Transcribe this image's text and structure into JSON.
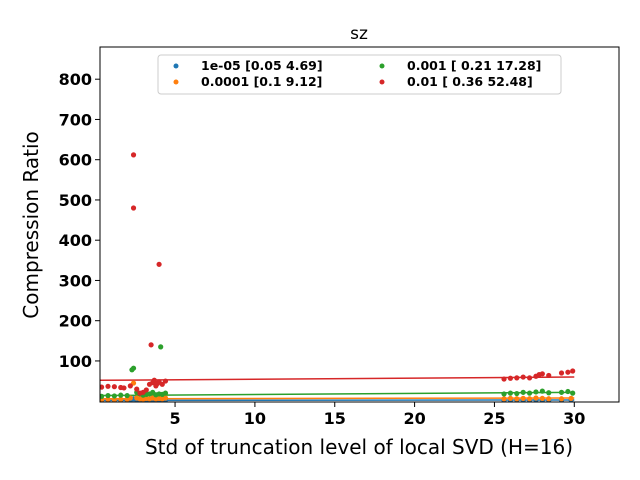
{
  "chart_data": {
    "type": "scatter",
    "title": "sz",
    "xlabel": "Std of truncation level of local SVD (H=16)",
    "ylabel": "Compression Ratio",
    "xlim": [
      0.3,
      32.8
    ],
    "ylim": [
      -2,
      880
    ],
    "xticks": [
      5,
      10,
      15,
      20,
      25,
      30
    ],
    "yticks": [
      100,
      200,
      300,
      400,
      500,
      600,
      700,
      800
    ],
    "grid": false,
    "legend_position": "top-center",
    "series": [
      {
        "name": "1e-05 [0.05 4.69]",
        "color": "#1f77b4",
        "points": [
          [
            0.4,
            1
          ],
          [
            0.8,
            2
          ],
          [
            1.2,
            1
          ],
          [
            1.6,
            2
          ],
          [
            2.0,
            2
          ],
          [
            2.2,
            3
          ],
          [
            2.4,
            6
          ],
          [
            2.6,
            3
          ],
          [
            2.8,
            2
          ],
          [
            3.0,
            2
          ],
          [
            3.2,
            3
          ],
          [
            3.4,
            2
          ],
          [
            3.6,
            3
          ],
          [
            3.8,
            2
          ],
          [
            4.0,
            3
          ],
          [
            4.2,
            2
          ],
          [
            4.4,
            3
          ],
          [
            25.6,
            2
          ],
          [
            26.0,
            2
          ],
          [
            26.4,
            3
          ],
          [
            26.8,
            2
          ],
          [
            27.2,
            2
          ],
          [
            27.6,
            3
          ],
          [
            28.0,
            2
          ],
          [
            28.4,
            2
          ],
          [
            29.2,
            2
          ],
          [
            29.8,
            3
          ]
        ],
        "fit": [
          [
            0.3,
            2
          ],
          [
            30,
            3
          ]
        ]
      },
      {
        "name": "0.0001 [0.1  9.12]",
        "color": "#ff7f0e",
        "points": [
          [
            0.4,
            4
          ],
          [
            0.8,
            5
          ],
          [
            1.2,
            4
          ],
          [
            1.6,
            5
          ],
          [
            2.0,
            5
          ],
          [
            2.2,
            8
          ],
          [
            2.4,
            45
          ],
          [
            2.6,
            8
          ],
          [
            2.8,
            6
          ],
          [
            3.0,
            5
          ],
          [
            3.2,
            7
          ],
          [
            3.4,
            6
          ],
          [
            3.6,
            8
          ],
          [
            3.8,
            6
          ],
          [
            4.0,
            7
          ],
          [
            4.2,
            6
          ],
          [
            4.4,
            8
          ],
          [
            25.6,
            6
          ],
          [
            26.0,
            7
          ],
          [
            26.4,
            6
          ],
          [
            26.8,
            7
          ],
          [
            27.2,
            6
          ],
          [
            27.6,
            8
          ],
          [
            28.0,
            7
          ],
          [
            28.4,
            6
          ],
          [
            29.2,
            6
          ],
          [
            29.8,
            7
          ]
        ],
        "fit": [
          [
            0.3,
            6
          ],
          [
            30,
            8
          ]
        ]
      },
      {
        "name": "0.001 [ 0.21 17.28]",
        "color": "#2ca02c",
        "points": [
          [
            0.4,
            12
          ],
          [
            0.8,
            14
          ],
          [
            1.2,
            13
          ],
          [
            1.6,
            15
          ],
          [
            2.0,
            14
          ],
          [
            2.3,
            78
          ],
          [
            2.4,
            82
          ],
          [
            2.6,
            22
          ],
          [
            2.8,
            18
          ],
          [
            3.0,
            15
          ],
          [
            3.2,
            17
          ],
          [
            3.4,
            18
          ],
          [
            3.6,
            22
          ],
          [
            3.8,
            16
          ],
          [
            4.0,
            18
          ],
          [
            4.1,
            135
          ],
          [
            4.2,
            17
          ],
          [
            4.4,
            20
          ],
          [
            25.6,
            18
          ],
          [
            26.0,
            20
          ],
          [
            26.4,
            19
          ],
          [
            26.8,
            22
          ],
          [
            27.2,
            20
          ],
          [
            27.6,
            23
          ],
          [
            28.0,
            25
          ],
          [
            28.4,
            21
          ],
          [
            29.2,
            22
          ],
          [
            29.6,
            24
          ],
          [
            29.9,
            20
          ]
        ],
        "fit": [
          [
            0.3,
            14
          ],
          [
            30,
            22
          ]
        ]
      },
      {
        "name": "0.01 [ 0.36 52.48]",
        "color": "#d62728",
        "points": [
          [
            0.4,
            35
          ],
          [
            0.8,
            37
          ],
          [
            1.2,
            36
          ],
          [
            1.6,
            34
          ],
          [
            1.8,
            33
          ],
          [
            2.2,
            38
          ],
          [
            2.4,
            612
          ],
          [
            2.4,
            480
          ],
          [
            2.6,
            30
          ],
          [
            2.8,
            20
          ],
          [
            3.0,
            22
          ],
          [
            3.2,
            28
          ],
          [
            3.4,
            42
          ],
          [
            3.5,
            140
          ],
          [
            3.6,
            46
          ],
          [
            3.7,
            52
          ],
          [
            3.8,
            38
          ],
          [
            3.9,
            44
          ],
          [
            4.0,
            340
          ],
          [
            4.0,
            48
          ],
          [
            4.2,
            42
          ],
          [
            4.4,
            50
          ],
          [
            25.6,
            55
          ],
          [
            26.0,
            57
          ],
          [
            26.4,
            58
          ],
          [
            26.8,
            60
          ],
          [
            27.2,
            58
          ],
          [
            27.6,
            62
          ],
          [
            27.8,
            66
          ],
          [
            28.0,
            68
          ],
          [
            28.4,
            64
          ],
          [
            29.2,
            70
          ],
          [
            29.6,
            72
          ],
          [
            29.9,
            75
          ]
        ],
        "fit": [
          [
            0.3,
            52
          ],
          [
            30,
            60
          ]
        ]
      }
    ]
  }
}
